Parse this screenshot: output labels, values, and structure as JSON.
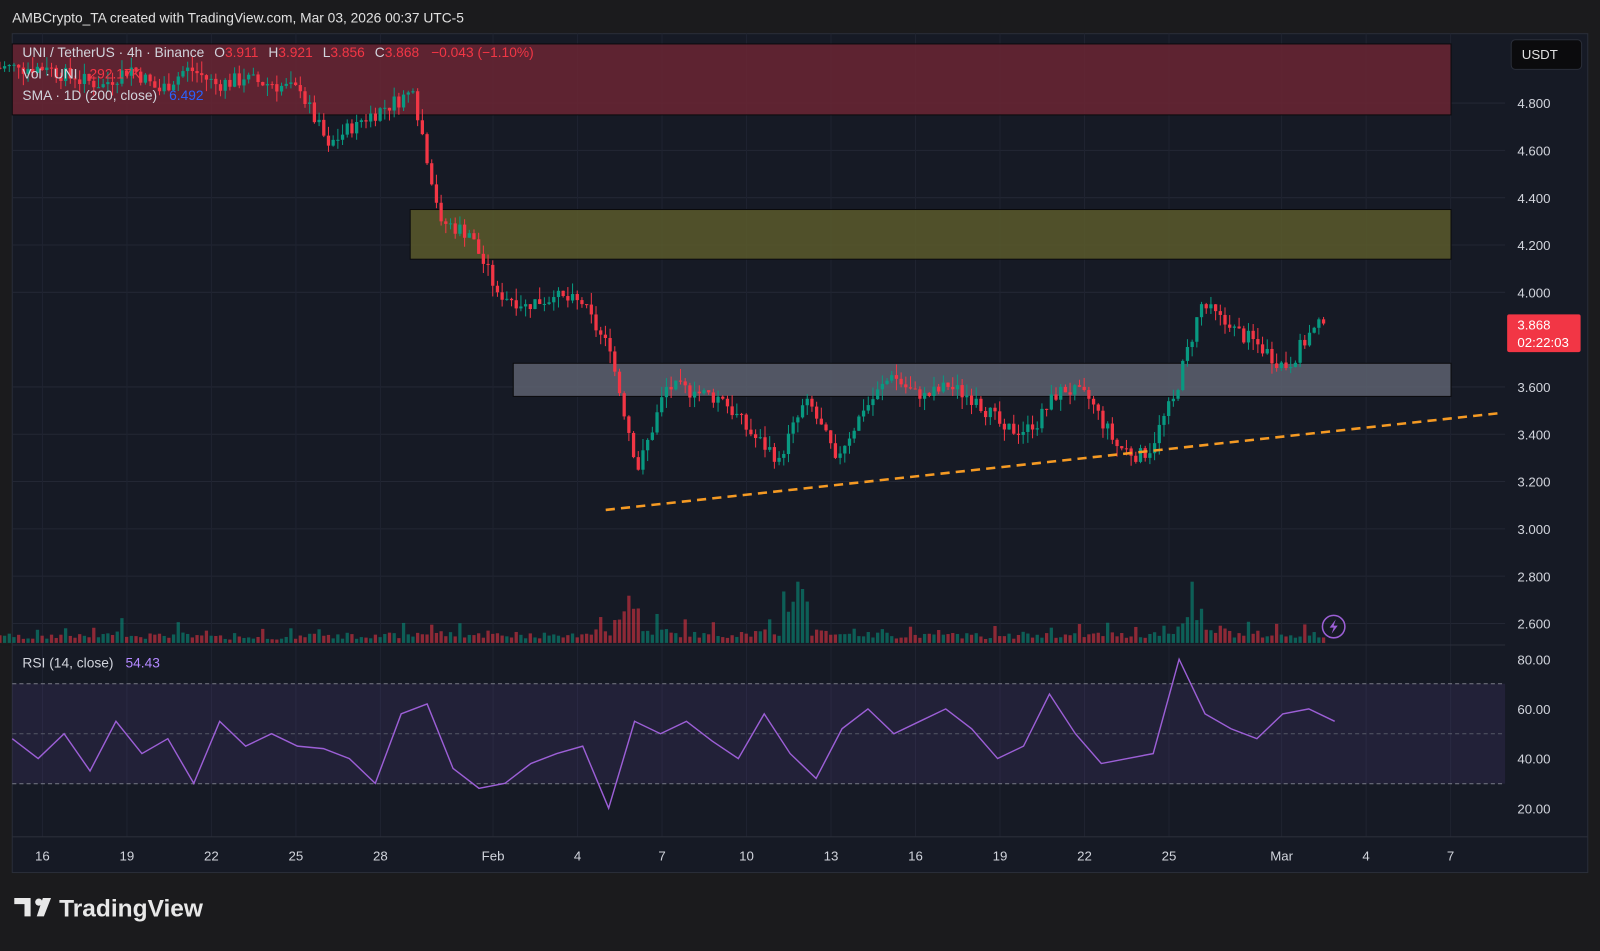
{
  "header": {
    "credit": "AMBCrypto_TA created with TradingView.com, Mar 03, 2026 00:37 UTC-5"
  },
  "legend": {
    "symbol": "UNI / TetherUS · 4h · Binance",
    "o_label": "O",
    "o": "3.911",
    "h_label": "H",
    "h": "3.921",
    "l_label": "L",
    "l": "3.856",
    "c_label": "C",
    "c": "3.868",
    "change": "−0.043 (−1.10%)",
    "vol_label": "Vol · UNI",
    "vol": "292.17K",
    "sma_label": "SMA · 1D (200, close)",
    "sma": "6.492"
  },
  "currency_button": "USDT",
  "last_price": {
    "price": "3.868",
    "countdown": "02:22:03"
  },
  "rsi_legend": {
    "label": "RSI (14, close)",
    "value": "54.43"
  },
  "brand": "TradingView",
  "colors": {
    "up": "#089981",
    "down": "#f23645",
    "rsi": "#9c5fd6",
    "trend": "#f59a23"
  },
  "chart_data": {
    "type": "candlestick",
    "title": "UNI / TetherUS · 4h · Binance",
    "y_ticks": [
      "4.800",
      "4.600",
      "4.400",
      "4.200",
      "4.000",
      "3.600",
      "3.400",
      "3.200",
      "3.000",
      "2.800",
      "2.600"
    ],
    "y_tick_values": [
      4.8,
      4.6,
      4.4,
      4.2,
      4.0,
      3.6,
      3.4,
      3.2,
      3.0,
      2.8,
      2.6
    ],
    "ylim": [
      2.55,
      5.05
    ],
    "x_ticks": [
      {
        "label": "16",
        "day": 1
      },
      {
        "label": "19",
        "day": 4
      },
      {
        "label": "22",
        "day": 7
      },
      {
        "label": "25",
        "day": 10
      },
      {
        "label": "28",
        "day": 13
      },
      {
        "label": "Feb",
        "day": 17
      },
      {
        "label": "4",
        "day": 20
      },
      {
        "label": "7",
        "day": 23
      },
      {
        "label": "10",
        "day": 26
      },
      {
        "label": "13",
        "day": 29
      },
      {
        "label": "16",
        "day": 32
      },
      {
        "label": "19",
        "day": 35
      },
      {
        "label": "22",
        "day": 38
      },
      {
        "label": "25",
        "day": 41
      },
      {
        "label": "Mar",
        "day": 45
      },
      {
        "label": "4",
        "day": 48
      },
      {
        "label": "7",
        "day": 51
      }
    ],
    "start_date": "Jan 15",
    "daily_close": [
      4.95,
      4.95,
      4.9,
      4.88,
      4.95,
      4.85,
      4.95,
      4.88,
      4.9,
      4.88,
      4.85,
      4.62,
      4.72,
      4.78,
      4.85,
      4.3,
      4.25,
      4.0,
      3.95,
      3.98,
      3.95,
      3.75,
      3.25,
      3.6,
      3.58,
      3.55,
      3.4,
      3.3,
      3.55,
      3.3,
      3.5,
      3.65,
      3.55,
      3.6,
      3.55,
      3.42,
      3.42,
      3.6,
      3.55,
      3.35,
      3.3,
      3.55,
      3.95,
      3.85,
      3.78,
      3.68,
      3.85,
      3.868
    ],
    "daily_volume_k": [
      120,
      110,
      150,
      130,
      200,
      140,
      160,
      120,
      110,
      120,
      110,
      160,
      130,
      140,
      150,
      200,
      170,
      160,
      140,
      150,
      130,
      220,
      650,
      240,
      180,
      160,
      170,
      200,
      900,
      200,
      180,
      160,
      150,
      140,
      150,
      130,
      140,
      160,
      150,
      170,
      160,
      180,
      520,
      220,
      180,
      160,
      170,
      150
    ],
    "rsi": [
      48,
      40,
      50,
      35,
      55,
      42,
      48,
      30,
      55,
      45,
      50,
      45,
      44,
      40,
      30,
      58,
      62,
      36,
      28,
      30,
      38,
      42,
      45,
      20,
      55,
      50,
      55,
      47,
      40,
      58,
      42,
      32,
      52,
      60,
      50,
      55,
      60,
      52,
      40,
      45,
      66,
      50,
      38,
      40,
      42,
      80,
      58,
      52,
      48,
      58,
      60,
      55
    ],
    "rsi_ticks": [
      "80.00",
      "60.00",
      "40.00",
      "20.00"
    ],
    "rsi_tick_values": [
      80,
      60,
      40,
      20
    ],
    "zones": [
      {
        "name": "supply-zone-red",
        "low": 4.75,
        "high": 5.05,
        "color": "#6b2634"
      },
      {
        "name": "resistance-zone-yellow",
        "low": 4.14,
        "high": 4.35,
        "color": "#5a5a2c"
      },
      {
        "name": "support-zone-gray",
        "low": 3.56,
        "high": 3.7,
        "color": "#5d6270"
      }
    ],
    "trendline": {
      "start_day": 21.0,
      "start_price": 3.08,
      "end_day": 52.8,
      "end_price": 3.49
    }
  }
}
